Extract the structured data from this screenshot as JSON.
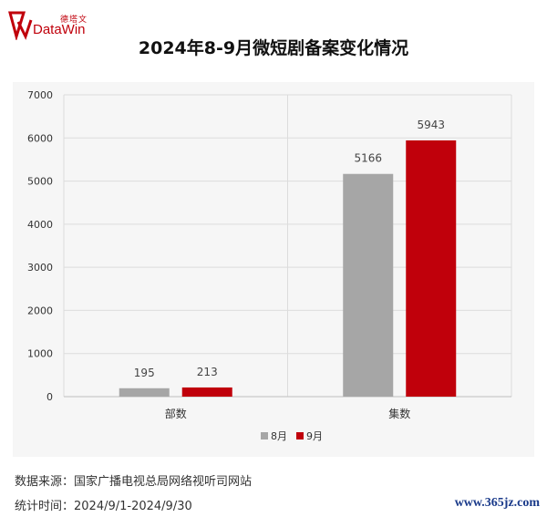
{
  "logo": {
    "cn": "德塔文",
    "en": "DataWin"
  },
  "title": "2024年8-9月微短剧备案变化情况",
  "chart_data": {
    "type": "bar",
    "categories": [
      "部数",
      "集数"
    ],
    "series": [
      {
        "name": "8月",
        "values": [
          195,
          5166
        ],
        "color": "#a6a6a6"
      },
      {
        "name": "9月",
        "values": [
          213,
          5943
        ],
        "color": "#c0000b"
      }
    ],
    "ylim": [
      0,
      7000
    ],
    "yticks": [
      0,
      1000,
      2000,
      3000,
      4000,
      5000,
      6000,
      7000
    ],
    "grid": true,
    "legend_position": "bottom"
  },
  "footer": {
    "source_label": "数据来源：",
    "source": "国家广播电视总局网络视听司网站",
    "time_label": "统计时间：",
    "time": "2024/9/1-2024/9/30"
  },
  "watermark": "www.365jz.com"
}
